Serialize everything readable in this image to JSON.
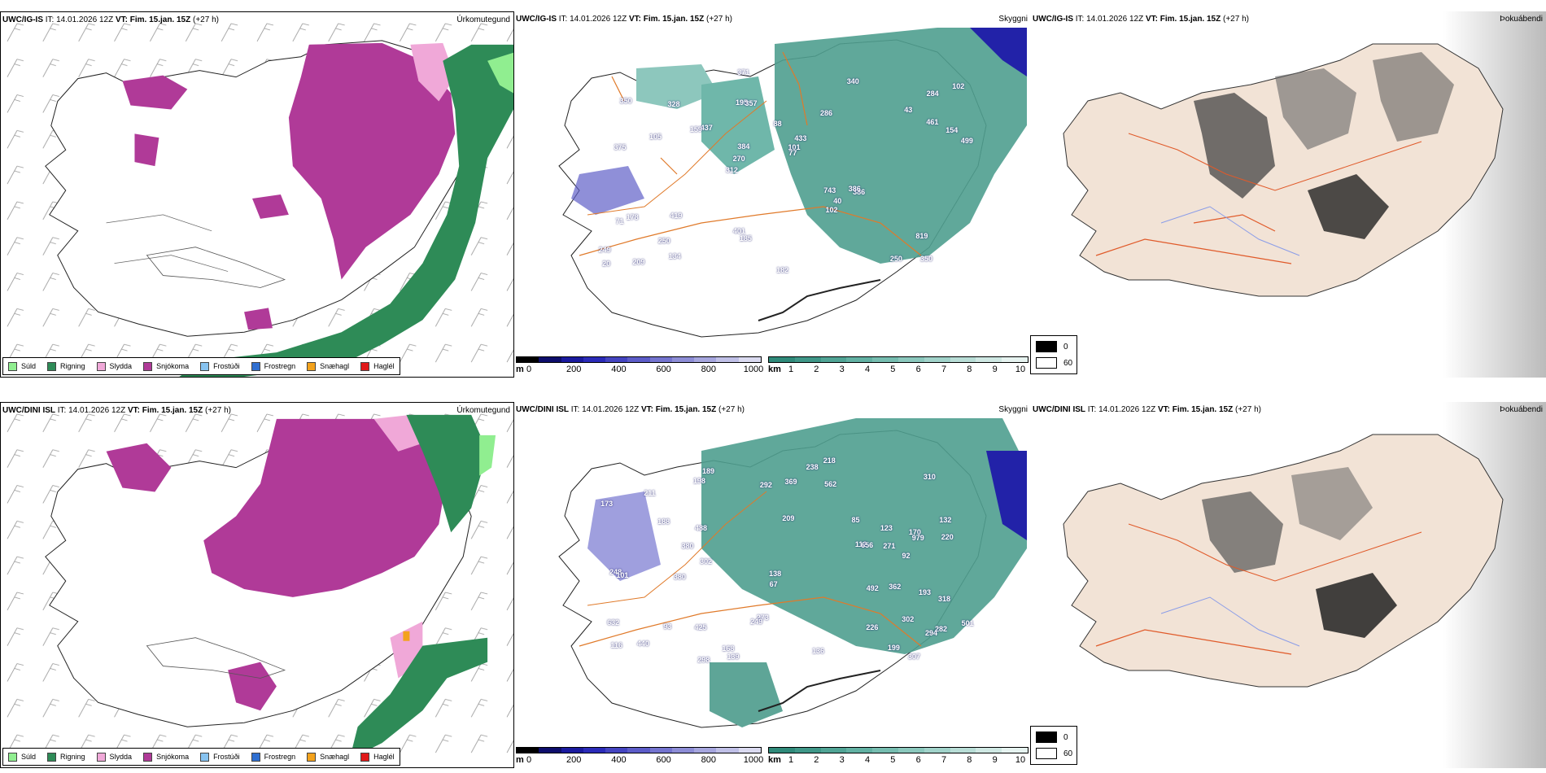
{
  "rows": [
    {
      "model": "UWC/IG-IS",
      "it_label": "IT:",
      "it_value": "14.01.2026 12Z",
      "vt_label": "VT:",
      "vt_value": "Fim. 15.jan. 15Z",
      "lead": "(+27 h)",
      "precip_title": "Úrkomutegund",
      "cloud_title": "Skyggni",
      "fog_title": "Þokuábendi",
      "cloud_numbers": [
        "350",
        "375",
        "284",
        "312",
        "286",
        "209",
        "195",
        "88",
        "178",
        "437",
        "249",
        "250",
        "357",
        "433",
        "386",
        "350",
        "371",
        "499",
        "743",
        "461",
        "270",
        "401",
        "384",
        "328",
        "340",
        "419",
        "250",
        "819",
        "386",
        "182",
        "159",
        "105",
        "102",
        "134",
        "154",
        "101",
        "20",
        "185",
        "77",
        "71",
        "43",
        "102",
        "40"
      ]
    },
    {
      "model": "UWC/DINI ISL",
      "it_label": "IT:",
      "it_value": "14.01.2026 12Z",
      "vt_label": "VT:",
      "vt_value": "Fim. 15.jan. 15Z",
      "lead": "(+27 h)",
      "precip_title": "Úrkomutegund",
      "cloud_title": "Skyggni",
      "fog_title": "Þokuábendi",
      "cloud_numbers": [
        "302",
        "132",
        "282",
        "209",
        "116",
        "189",
        "170",
        "425",
        "310",
        "188",
        "220",
        "173",
        "92",
        "139",
        "632",
        "211",
        "294",
        "198",
        "273",
        "979",
        "248",
        "101",
        "136",
        "112",
        "168",
        "249",
        "238",
        "562",
        "85",
        "501",
        "380",
        "226",
        "298",
        "138",
        "193",
        "199",
        "656",
        "292",
        "307",
        "302",
        "362",
        "271",
        "369",
        "380",
        "318",
        "492",
        "440",
        "218",
        "488",
        "123",
        "93",
        "67"
      ]
    }
  ],
  "precip_legend": [
    {
      "label": "Súld",
      "color": "#90ee90"
    },
    {
      "label": "Rigning",
      "color": "#2e8b57"
    },
    {
      "label": "Slydda",
      "color": "#f0a8d8"
    },
    {
      "label": "Snjókoma",
      "color": "#b03a98"
    },
    {
      "label": "Frostúði",
      "color": "#87c3f0"
    },
    {
      "label": "Frostregn",
      "color": "#2f6fd1"
    },
    {
      "label": "Snæhagl",
      "color": "#f3a21c"
    },
    {
      "label": "Haglél",
      "color": "#e01919"
    }
  ],
  "ceiling_bar": {
    "unit": "m",
    "ticks": [
      "0",
      "200",
      "400",
      "600",
      "800",
      "1000"
    ],
    "colors": [
      "#000000",
      "#0d0d6b",
      "#1a1a9e",
      "#2b2bb8",
      "#4444c0",
      "#5c5cc8",
      "#7474cf",
      "#8d8dd6",
      "#a6a6de",
      "#c0c0e7",
      "#dadaf0"
    ]
  },
  "visibility_bar": {
    "unit": "km",
    "ticks": [
      "1",
      "2",
      "3",
      "4",
      "5",
      "6",
      "7",
      "8",
      "9",
      "10"
    ],
    "colors": [
      "#2f8a7a",
      "#3f9788",
      "#50a495",
      "#62b1a3",
      "#76bdb0",
      "#8bc8bd",
      "#a1d3ca",
      "#b8ddd6",
      "#cfe8e3",
      "#e6f3f0"
    ]
  },
  "fog_legend": [
    {
      "label": "0",
      "color": "#000000"
    },
    {
      "label": "60",
      "color": "#ffffff"
    }
  ]
}
